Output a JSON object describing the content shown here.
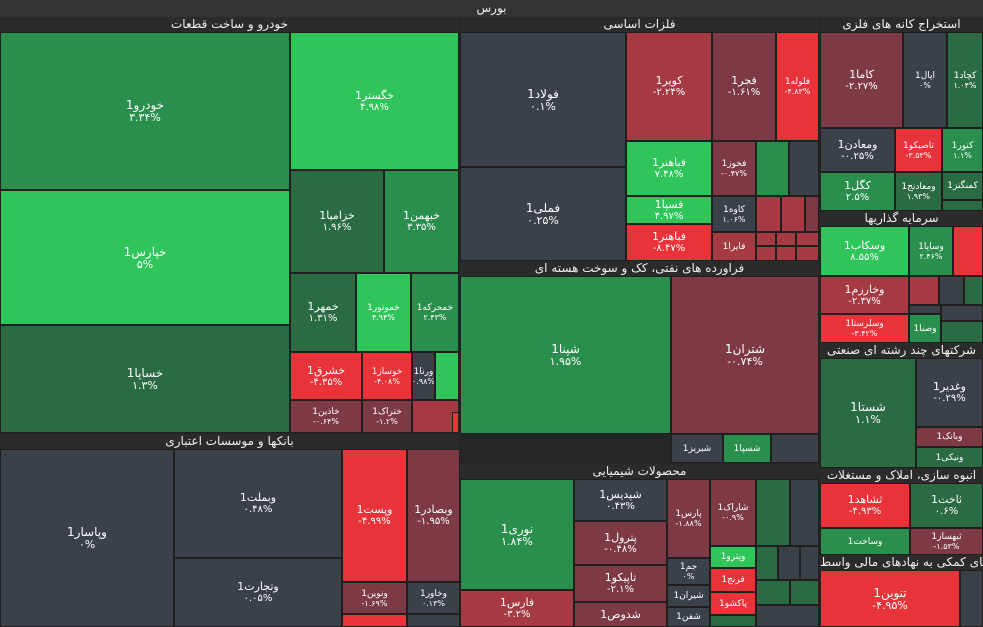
{
  "colors": {
    "strong_green": "#2fc55a",
    "green": "#2a8f4c",
    "dark_green": "#2b6b44",
    "neutral": "#3a4148",
    "dark_red": "#7d3a44",
    "red": "#a53a42",
    "strong_red": "#e8333a"
  },
  "chart_data": {
    "type": "treemap",
    "title": "بورس",
    "sectors": [
      {
        "name": "خودرو و ساخت قطعات",
        "stocks": [
          {
            "symbol": "خودرو1",
            "change": "۳.۳۴%"
          },
          {
            "symbol": "خپارس1",
            "change": "۵%"
          },
          {
            "symbol": "خساپا1",
            "change": "۱.۳%"
          },
          {
            "symbol": "خگستر1",
            "change": "۴.۹۸%"
          },
          {
            "symbol": "خزامیا1",
            "change": "۱.۹۶%"
          },
          {
            "symbol": "خبهمن1",
            "change": "۳.۳۵%"
          },
          {
            "symbol": "خمهر1",
            "change": "۱.۳۱%"
          },
          {
            "symbol": "خموتور1",
            "change": "۴.۹۴%"
          },
          {
            "symbol": "خمحرکه1",
            "change": "۲.۴۳%"
          },
          {
            "symbol": "خشرق1",
            "change": "-۴.۳۵%"
          },
          {
            "symbol": "خوساز1",
            "change": "-۴.۰۸%"
          },
          {
            "symbol": "ورنا1",
            "change": "۰.۹۸%"
          },
          {
            "symbol": "خاذین1",
            "change": "-۰.۶۴%"
          },
          {
            "symbol": "ختراک1",
            "change": "-۱.۲%"
          }
        ]
      },
      {
        "name": "فلزات اساسی",
        "stocks": [
          {
            "symbol": "فولاد1",
            "change": "۰.۱%"
          },
          {
            "symbol": "فملی1",
            "change": "۰.۲۵%"
          },
          {
            "symbol": "کویر1",
            "change": "-۲.۲۴%"
          },
          {
            "symbol": "فجر1",
            "change": "-۱.۶۱%"
          },
          {
            "symbol": "فلوله1",
            "change": "-۴.۸۳%"
          },
          {
            "symbol": "فباهنر1",
            "change": "۷.۴۸%"
          },
          {
            "symbol": "فخوز1",
            "change": "-۰.۴۷%"
          },
          {
            "symbol": "فسپا1",
            "change": "۴.۹۷%"
          },
          {
            "symbol": "کاوه1",
            "change": "۱.۰۶%"
          },
          {
            "symbol": "فباهنر1",
            "change": "-۸.۴۷%"
          },
          {
            "symbol": "فایرا1",
            "change": ""
          }
        ]
      },
      {
        "name": "استخراج کانه های فلزی",
        "stocks": [
          {
            "symbol": "کاما1",
            "change": "-۲.۲۷%"
          },
          {
            "symbol": "اپال1",
            "change": "۰%"
          },
          {
            "symbol": "کچاد1",
            "change": "۱.۰۴%"
          },
          {
            "symbol": "ومعادن1",
            "change": "-۰.۲۵%"
          },
          {
            "symbol": "تاصیکو1",
            "change": "-۳.۵۳%"
          },
          {
            "symbol": "کنور1",
            "change": "۱.۱%"
          },
          {
            "symbol": "کگل1",
            "change": "۲.۵%"
          },
          {
            "symbol": "ومعادنج1",
            "change": "۱.۹۳%"
          },
          {
            "symbol": "کمنگنز1",
            "change": ""
          }
        ]
      },
      {
        "name": "فراورده های نفتی، کک و سوخت هسته ای",
        "stocks": [
          {
            "symbol": "شپنا1",
            "change": "۱.۹۵%"
          },
          {
            "symbol": "شتران1",
            "change": "-۰.۷۴%"
          },
          {
            "symbol": "شبریز1",
            "change": ""
          },
          {
            "symbol": "شسپا1",
            "change": ""
          }
        ]
      },
      {
        "name": "سرمایه گذاریها",
        "stocks": [
          {
            "symbol": "وسکاب1",
            "change": "۸.۵۵%"
          },
          {
            "symbol": "وساپا1",
            "change": "۲.۴۶%"
          },
          {
            "symbol": "وخارزم1",
            "change": "-۲.۳۷%"
          },
          {
            "symbol": "وسلرستا1",
            "change": "-۳.۴۲%"
          },
          {
            "symbol": "وصنا1",
            "change": ""
          }
        ]
      },
      {
        "name": "شرکتهای چند رشته ای صنعتی",
        "stocks": [
          {
            "symbol": "شستا1",
            "change": "۱.۱%"
          },
          {
            "symbol": "وغدیر1",
            "change": "-۰.۲۹%"
          },
          {
            "symbol": "وبانک1",
            "change": ""
          },
          {
            "symbol": "ونیکی1",
            "change": ""
          }
        ]
      },
      {
        "name": "بانکها و موسسات اعتباری",
        "stocks": [
          {
            "symbol": "وپاسار1",
            "change": "۰%"
          },
          {
            "symbol": "وبملت1",
            "change": "۰.۴۸%"
          },
          {
            "symbol": "وتجارت1",
            "change": "۰.۰۵%"
          },
          {
            "symbol": "وپست1",
            "change": "-۴.۹۹%"
          },
          {
            "symbol": "وبصادر1",
            "change": "-۱.۹۵%"
          },
          {
            "symbol": "ونوین1",
            "change": "-۱.۶۹%"
          },
          {
            "symbol": "وخاور1",
            "change": "۰.۱۳%"
          }
        ]
      },
      {
        "name": "محصولات شیمیایی",
        "stocks": [
          {
            "symbol": "نوری1",
            "change": "۱.۸۴%"
          },
          {
            "symbol": "فارس1",
            "change": "-۳.۲%"
          },
          {
            "symbol": "شپدیس1",
            "change": "۰.۴۳%"
          },
          {
            "symbol": "پترول1",
            "change": "-۰.۴۸%"
          },
          {
            "symbol": "تاپیکو1",
            "change": "-۲.۱%"
          },
          {
            "symbol": "شدوص1",
            "change": ""
          },
          {
            "symbol": "پارس1",
            "change": "-۱.۸۸%"
          },
          {
            "symbol": "شاراک1",
            "change": "-۰.۹%"
          },
          {
            "symbol": "جم1",
            "change": "۰%"
          },
          {
            "symbol": "شیران1",
            "change": ""
          },
          {
            "symbol": "شفن1",
            "change": ""
          },
          {
            "symbol": "وپترو1",
            "change": ""
          },
          {
            "symbol": "قرنج1",
            "change": ""
          },
          {
            "symbol": "پاکشو1",
            "change": ""
          }
        ]
      },
      {
        "name": "انبوه سازی، املاک و مستغلات",
        "stocks": [
          {
            "symbol": "ثشاهد1",
            "change": "-۴.۹۳%"
          },
          {
            "symbol": "ثاخت1",
            "change": "۰.۶%"
          },
          {
            "symbol": "ثبهساز1",
            "change": "-۱.۵۳%"
          },
          {
            "symbol": "وساخت1",
            "change": ""
          }
        ]
      },
      {
        "name": "فعالیتهای کمکی به نهادهای مالی واسط",
        "stocks": [
          {
            "symbol": "تنوین1",
            "change": "-۴.۹۵%"
          }
        ]
      }
    ]
  }
}
